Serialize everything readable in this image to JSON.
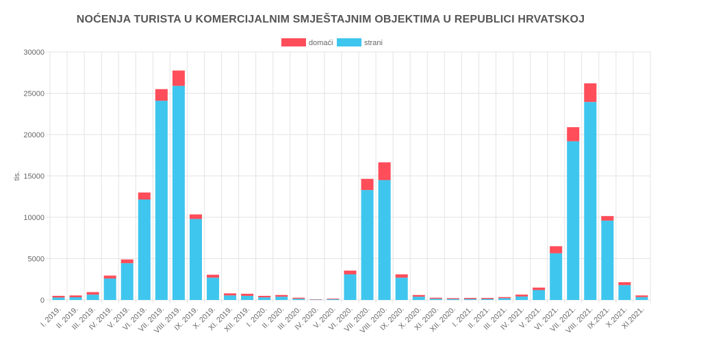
{
  "chart_data": {
    "type": "bar",
    "stacked": true,
    "title": "NOĆENJA TURISTA U KOMERCIJALNIM SMJEŠTAJNIM OBJEKTIMA U REPUBLICI HRVATSKOJ",
    "ylabel": "tis.",
    "xlabel": "",
    "ylim": [
      0,
      30000
    ],
    "yticks": [
      0,
      5000,
      10000,
      15000,
      20000,
      25000,
      30000
    ],
    "grid": true,
    "legend_position": "top",
    "categories": [
      "I. 2019.",
      "II. 2019.",
      "III. 2019.",
      "IV. 2019.",
      "V. 2019.",
      "VI. 2019.",
      "VII. 2019.",
      "VIII. 2019.",
      "IX. 2019.",
      "X. 2019.",
      "XI. 2019.",
      "XII. 2019.",
      "I. 2020.",
      "II. 2020.",
      "III. 2020.",
      "IV. 2020.",
      "V. 2020.",
      "VI. 2020.",
      "VII. 2020.",
      "VIII. 2020.",
      "IX. 2020.",
      "X. 2020.",
      "XI. 2020.",
      "XII. 2020.",
      "I. 2021.",
      "II. 2021.",
      "III. 2021.",
      "IV. 2021.",
      "V. 2021.",
      "VI. 2021.",
      "VII. 2021.",
      "VIII. 2021.",
      "IX.2021.",
      "X.2021.",
      "XI.2021."
    ],
    "series": [
      {
        "name": "strani",
        "color": "#3fc6ee",
        "values": [
          300,
          330,
          650,
          2600,
          4450,
          12150,
          24100,
          25900,
          9800,
          2700,
          550,
          500,
          320,
          400,
          150,
          40,
          100,
          3100,
          13300,
          14500,
          2700,
          400,
          150,
          120,
          120,
          130,
          220,
          420,
          1200,
          5650,
          19200,
          23950,
          9600,
          1800,
          350
        ]
      },
      {
        "name": "domaći",
        "color": "#ff4d5a",
        "values": [
          200,
          220,
          300,
          350,
          450,
          850,
          1400,
          1850,
          550,
          350,
          250,
          250,
          180,
          200,
          120,
          40,
          70,
          450,
          1350,
          2150,
          400,
          200,
          120,
          100,
          130,
          120,
          130,
          230,
          300,
          850,
          1700,
          2250,
          550,
          350,
          200
        ]
      }
    ]
  }
}
